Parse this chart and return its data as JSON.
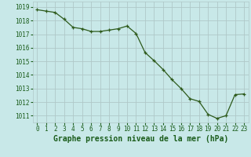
{
  "x": [
    0,
    1,
    2,
    3,
    4,
    5,
    6,
    7,
    8,
    9,
    10,
    11,
    12,
    13,
    14,
    15,
    16,
    17,
    18,
    19,
    20,
    21,
    22,
    23
  ],
  "y": [
    1018.8,
    1018.7,
    1018.6,
    1018.1,
    1017.5,
    1017.4,
    1017.2,
    1017.2,
    1017.3,
    1017.4,
    1017.6,
    1017.05,
    1015.65,
    1015.05,
    1014.4,
    1013.65,
    1013.0,
    1012.25,
    1012.05,
    1011.1,
    1010.8,
    1011.0,
    1012.55,
    1012.6
  ],
  "line_color": "#2d5a1b",
  "marker_color": "#2d5a1b",
  "background_color": "#c8e8e8",
  "grid_color": "#b0c8c8",
  "xlabel": "Graphe pression niveau de la mer (hPa)",
  "xlabel_color": "#1a5c1a",
  "ylim": [
    1010.5,
    1019.4
  ],
  "yticks": [
    1011,
    1012,
    1013,
    1014,
    1015,
    1016,
    1017,
    1018,
    1019
  ],
  "xticks": [
    0,
    1,
    2,
    3,
    4,
    5,
    6,
    7,
    8,
    9,
    10,
    11,
    12,
    13,
    14,
    15,
    16,
    17,
    18,
    19,
    20,
    21,
    22,
    23
  ],
  "tick_fontsize": 5.5,
  "xlabel_fontsize": 7.0
}
